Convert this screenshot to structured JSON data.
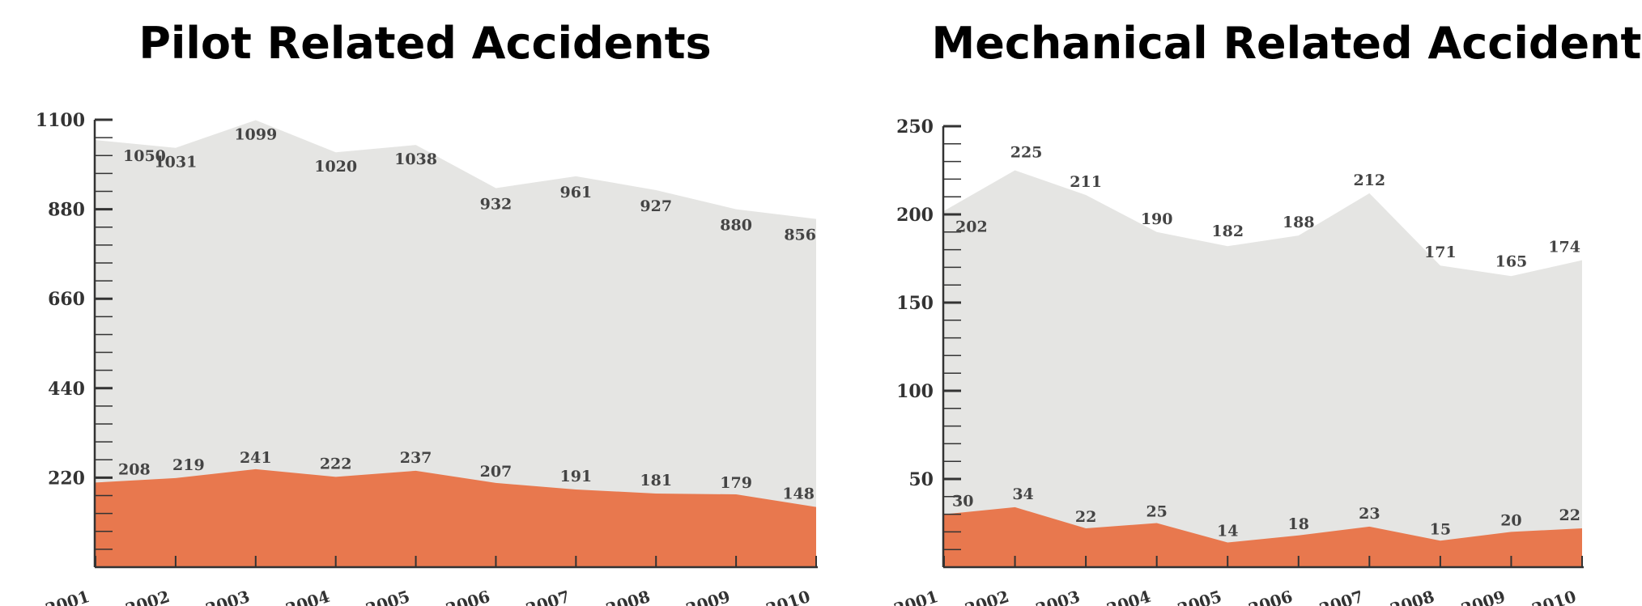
{
  "colors": {
    "total_area": "#e5e5e3",
    "related_area": "#e8784e",
    "axis": "#333333"
  },
  "chart_data": [
    {
      "type": "area",
      "title": "Pilot Related Accidents",
      "categories": [
        "2001",
        "2002",
        "2003",
        "2004",
        "2005",
        "2006",
        "2007",
        "2008",
        "2009",
        "2010"
      ],
      "series": [
        {
          "values": [
            1050,
            1031,
            1099,
            1020,
            1038,
            932,
            961,
            927,
            880,
            856
          ]
        },
        {
          "values": [
            208,
            219,
            241,
            222,
            237,
            207,
            191,
            181,
            179,
            148
          ]
        }
      ],
      "ylim": [
        0,
        1100
      ],
      "yticks": [
        220,
        440,
        660,
        880,
        1100
      ],
      "grid": false
    },
    {
      "type": "area",
      "title": "Mechanical Related Accidents",
      "categories": [
        "2001",
        "2002",
        "2003",
        "2004",
        "2005",
        "2006",
        "2007",
        "2008",
        "2009",
        "2010"
      ],
      "series": [
        {
          "values": [
            202,
            225,
            211,
            190,
            182,
            188,
            212,
            171,
            165,
            174
          ]
        },
        {
          "values": [
            30,
            34,
            22,
            25,
            14,
            18,
            23,
            15,
            20,
            22
          ]
        }
      ],
      "ylim": [
        0,
        250
      ],
      "yticks": [
        50,
        100,
        150,
        200,
        250
      ],
      "grid": false
    }
  ]
}
